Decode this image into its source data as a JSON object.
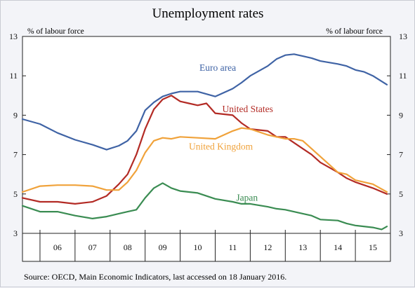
{
  "chart_data": {
    "type": "line",
    "title": "Unemployment rates",
    "ylabel_left": "% of labour force",
    "ylabel_right": "% of labour force",
    "ylim": [
      3,
      13
    ],
    "yticks": [
      3,
      5,
      7,
      9,
      11,
      13
    ],
    "xlim": [
      2005.5,
      2016.0
    ],
    "xtick_labels": [
      "06",
      "07",
      "08",
      "09",
      "10",
      "11",
      "12",
      "13",
      "14",
      "15"
    ],
    "x_unit": "year (quarterly samples)",
    "grid": false,
    "source": "Source: OECD, Main Economic Indicators, last accessed on 18 January 2016.",
    "series": [
      {
        "name": "Euro area",
        "color": "#3f63a5",
        "label_at": [
          2010.55,
          11.25
        ],
        "x": [
          2005.5,
          2006.0,
          2006.5,
          2007.0,
          2007.5,
          2007.9,
          2008.25,
          2008.5,
          2008.75,
          2009.0,
          2009.25,
          2009.5,
          2009.75,
          2010.0,
          2010.5,
          2011.0,
          2011.5,
          2011.75,
          2012.0,
          2012.5,
          2012.75,
          2013.0,
          2013.25,
          2013.5,
          2013.75,
          2014.0,
          2014.5,
          2014.75,
          2015.0,
          2015.25,
          2015.5,
          2015.9
        ],
        "values": [
          8.8,
          8.55,
          8.1,
          7.75,
          7.5,
          7.25,
          7.45,
          7.7,
          8.2,
          9.25,
          9.65,
          9.95,
          10.1,
          10.2,
          10.2,
          9.95,
          10.35,
          10.65,
          11.0,
          11.5,
          11.85,
          12.05,
          12.1,
          12.0,
          11.9,
          11.75,
          11.6,
          11.5,
          11.3,
          11.2,
          11.0,
          10.55
        ]
      },
      {
        "name": "United States",
        "color": "#b32b25",
        "label_at": [
          2011.2,
          9.15
        ],
        "x": [
          2005.5,
          2006.0,
          2006.5,
          2007.0,
          2007.5,
          2007.9,
          2008.25,
          2008.5,
          2008.75,
          2009.0,
          2009.25,
          2009.5,
          2009.75,
          2010.0,
          2010.25,
          2010.5,
          2010.75,
          2011.0,
          2011.5,
          2011.75,
          2012.0,
          2012.5,
          2012.75,
          2013.0,
          2013.5,
          2013.75,
          2014.0,
          2014.5,
          2014.75,
          2015.0,
          2015.5,
          2015.9
        ],
        "values": [
          4.8,
          4.6,
          4.6,
          4.5,
          4.6,
          4.9,
          5.5,
          6.0,
          7.0,
          8.3,
          9.3,
          9.8,
          10.0,
          9.7,
          9.6,
          9.5,
          9.6,
          9.1,
          9.0,
          8.6,
          8.3,
          8.2,
          7.9,
          7.9,
          7.3,
          7.0,
          6.6,
          6.1,
          5.8,
          5.6,
          5.3,
          5.0
        ]
      },
      {
        "name": "United Kingdom",
        "color": "#f0a23a",
        "label_at": [
          2010.25,
          7.25
        ],
        "x": [
          2005.5,
          2006.0,
          2006.5,
          2007.0,
          2007.5,
          2007.9,
          2008.25,
          2008.5,
          2008.75,
          2009.0,
          2009.25,
          2009.5,
          2009.75,
          2010.0,
          2010.5,
          2011.0,
          2011.5,
          2011.75,
          2012.0,
          2012.5,
          2012.75,
          2013.0,
          2013.25,
          2013.5,
          2013.75,
          2014.0,
          2014.25,
          2014.5,
          2014.75,
          2015.0,
          2015.5,
          2015.9
        ],
        "values": [
          5.1,
          5.4,
          5.45,
          5.45,
          5.4,
          5.2,
          5.2,
          5.6,
          6.2,
          7.1,
          7.7,
          7.85,
          7.8,
          7.9,
          7.85,
          7.8,
          8.2,
          8.35,
          8.3,
          8.0,
          7.9,
          7.8,
          7.8,
          7.7,
          7.3,
          6.9,
          6.5,
          6.1,
          6.0,
          5.7,
          5.5,
          5.1
        ]
      },
      {
        "name": "Japan",
        "color": "#3a8c52",
        "label_at": [
          2011.6,
          4.65
        ],
        "x": [
          2005.5,
          2006.0,
          2006.5,
          2007.0,
          2007.5,
          2007.9,
          2008.25,
          2008.5,
          2008.75,
          2009.0,
          2009.25,
          2009.5,
          2009.75,
          2010.0,
          2010.5,
          2011.0,
          2011.5,
          2011.75,
          2012.0,
          2012.5,
          2012.75,
          2013.0,
          2013.5,
          2013.75,
          2014.0,
          2014.5,
          2014.75,
          2015.0,
          2015.5,
          2015.75,
          2015.9
        ],
        "values": [
          4.4,
          4.1,
          4.1,
          3.9,
          3.75,
          3.85,
          4.0,
          4.1,
          4.2,
          4.8,
          5.3,
          5.55,
          5.3,
          5.15,
          5.05,
          4.75,
          4.6,
          4.5,
          4.5,
          4.35,
          4.25,
          4.2,
          4.0,
          3.9,
          3.7,
          3.65,
          3.5,
          3.4,
          3.3,
          3.2,
          3.35
        ]
      }
    ]
  }
}
